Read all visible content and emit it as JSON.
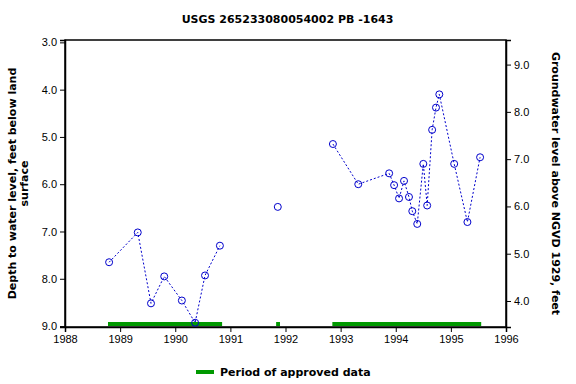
{
  "chart_data": {
    "type": "line",
    "title": "USGS 265233080054002 PB -1643",
    "y_label": "Depth to water level, feet below land surface",
    "y2_label": "Groundwater level above NGVD 1929, feet",
    "xlim": [
      1988,
      1996
    ],
    "xticks": [
      1988,
      1989,
      1990,
      1991,
      1992,
      1993,
      1994,
      1995,
      1996
    ],
    "ylim": [
      9.02,
      2.95
    ],
    "yticks": [
      {
        "value": 3,
        "label": "3.0"
      },
      {
        "value": 4,
        "label": "4.0"
      },
      {
        "value": 5,
        "label": "5.0"
      },
      {
        "value": 6,
        "label": "6.0"
      },
      {
        "value": 7,
        "label": "7.0"
      },
      {
        "value": 8,
        "label": "8.0"
      },
      {
        "value": 9,
        "label": "9.0"
      }
    ],
    "y2lim": [
      3.45,
      9.52
    ],
    "y2ticks": [
      {
        "value": 4,
        "label": "4.0"
      },
      {
        "value": 5,
        "label": "5.0"
      },
      {
        "value": 6,
        "label": "6.0"
      },
      {
        "value": 7,
        "label": "7.0"
      },
      {
        "value": 8,
        "label": "8.0"
      },
      {
        "value": 9,
        "label": "9.0"
      }
    ],
    "grid": false,
    "series": [
      {
        "color": "#0000cc",
        "marker": "circle",
        "line_style": "dashed",
        "x": [
          1988.8,
          1989.32,
          1989.56,
          1989.8,
          1990.12,
          1990.36,
          1990.54,
          1990.81,
          null,
          1991.86,
          null,
          1992.86,
          1993.32,
          1993.88,
          1993.97,
          1994.06,
          1994.15,
          1994.24,
          1994.3,
          1994.39,
          1994.5,
          1994.57,
          1994.66,
          1994.73,
          1994.79,
          1995.06,
          1995.3,
          1995.53
        ],
        "values": [
          7.65,
          7.02,
          8.52,
          7.95,
          8.46,
          8.93,
          7.93,
          7.3,
          null,
          6.48,
          null,
          5.15,
          6.0,
          5.77,
          6.02,
          6.3,
          5.93,
          6.27,
          6.57,
          6.84,
          5.57,
          6.45,
          4.85,
          4.38,
          4.1,
          5.57,
          6.8,
          5.43
        ]
      }
    ],
    "approved_periods": {
      "name": "Period of approved data",
      "color": "#009900",
      "ranges": [
        [
          1988.78,
          1990.85
        ],
        [
          1991.83,
          1991.9
        ],
        [
          1992.85,
          1995.55
        ]
      ]
    }
  }
}
